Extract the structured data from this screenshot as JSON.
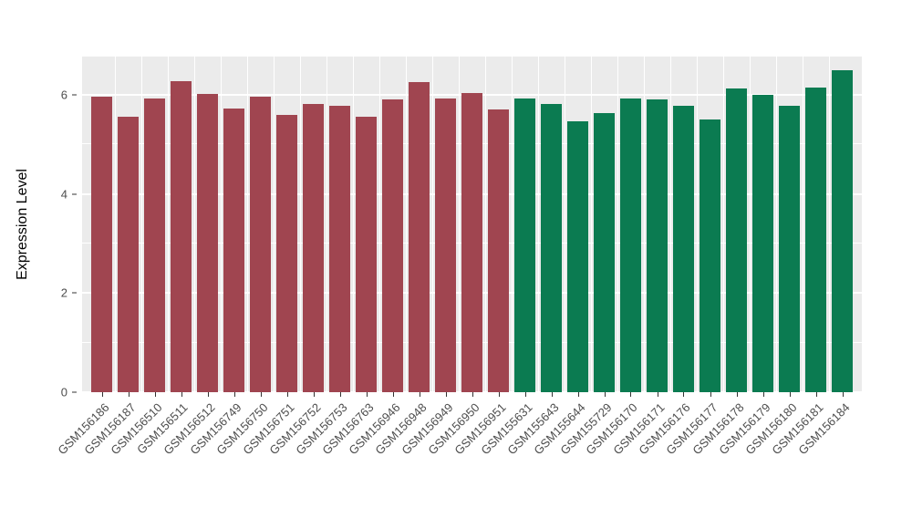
{
  "chart_data": {
    "type": "bar",
    "title": "",
    "xlabel": "",
    "ylabel": "Expression Level",
    "ylim": [
      0,
      6.77
    ],
    "yticks_major": [
      0,
      2,
      4,
      6
    ],
    "yticks_minor": [
      1,
      3,
      5
    ],
    "grid": "on",
    "legend": "none",
    "panel_background": "#EBEBEB",
    "gridline_color": "#FFFFFF",
    "palette": {
      "group1": "#A04550",
      "group2": "#0B7B51"
    },
    "categories": [
      "GSM156186",
      "GSM156187",
      "GSM156510",
      "GSM156511",
      "GSM156512",
      "GSM156749",
      "GSM156750",
      "GSM156751",
      "GSM156752",
      "GSM156753",
      "GSM156763",
      "GSM156946",
      "GSM156948",
      "GSM156949",
      "GSM156950",
      "GSM156951",
      "GSM155631",
      "GSM155643",
      "GSM155644",
      "GSM155729",
      "GSM156170",
      "GSM156171",
      "GSM156176",
      "GSM156177",
      "GSM156178",
      "GSM156179",
      "GSM156180",
      "GSM156181",
      "GSM156184"
    ],
    "values": [
      5.97,
      5.55,
      5.93,
      6.28,
      6.02,
      5.72,
      5.97,
      5.6,
      5.82,
      5.77,
      5.56,
      5.91,
      6.25,
      5.93,
      6.03,
      5.7,
      5.93,
      5.82,
      5.47,
      5.63,
      5.93,
      5.9,
      5.78,
      5.5,
      6.12,
      6.0,
      5.78,
      6.15,
      6.5
    ],
    "groups": [
      "group1",
      "group1",
      "group1",
      "group1",
      "group1",
      "group1",
      "group1",
      "group1",
      "group1",
      "group1",
      "group1",
      "group1",
      "group1",
      "group1",
      "group1",
      "group1",
      "group2",
      "group2",
      "group2",
      "group2",
      "group2",
      "group2",
      "group2",
      "group2",
      "group2",
      "group2",
      "group2",
      "group2",
      "group2"
    ],
    "bar_width_ratio": 0.8
  }
}
